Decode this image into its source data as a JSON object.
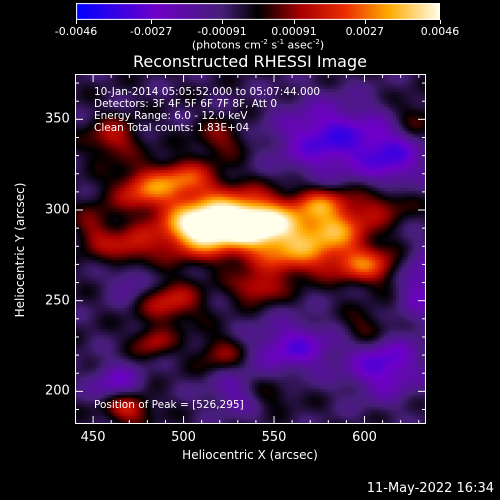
{
  "colorbar": {
    "ticks": [
      "-0.0046",
      "-0.0027",
      "-0.00091",
      "0.00091",
      "0.0027",
      "0.0046"
    ],
    "tick_values": [
      -0.0046,
      -0.0027,
      -0.00091,
      0.00091,
      0.0027,
      0.0046
    ],
    "range": [
      -0.0046,
      0.0046
    ],
    "unit_prefix": "(photons cm",
    "unit_exp1": "-2",
    "unit_mid1": " s",
    "unit_exp2": "-1",
    "unit_mid2": " asec",
    "unit_exp3": "-2",
    "unit_suffix": ")"
  },
  "chart_data": {
    "type": "heatmap",
    "title": "Reconstructed RHESSI Image",
    "xlabel": "Heliocentric X (arcsec)",
    "ylabel": "Heliocentric Y (arcsec)",
    "xlim": [
      440,
      634
    ],
    "ylim": [
      182,
      375
    ],
    "xticks": [
      "450",
      "500",
      "550",
      "600"
    ],
    "xtick_values": [
      450,
      500,
      550,
      600
    ],
    "yticks": [
      "200",
      "250",
      "300",
      "350"
    ],
    "ytick_values": [
      200,
      250,
      300,
      350
    ],
    "colormap": "blue-purple-red-yellow-white",
    "peak_position": [
      526,
      295
    ],
    "annotations": {
      "time_range": "10-Jan-2014 05:05:52.000 to 05:07:44.000",
      "detectors": "Detectors: 3F 4F 5F 6F 7F 8F, Att 0",
      "energy": "Energy Range: 6.0 - 12.0 keV",
      "clean": "Clean    Total counts: 1.83E+04",
      "peak": "Position of Peak = [526,295]"
    }
  },
  "timestamp": "11-May-2022 16:34"
}
